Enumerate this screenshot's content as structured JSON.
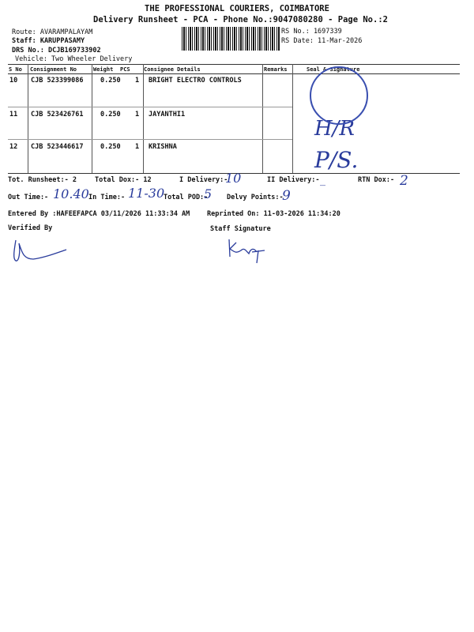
{
  "header": {
    "company": "THE PROFESSIONAL COURIERS, COIMBATORE",
    "subtitle": "Delivery Runsheet - PCA - Phone No.:9047080280 - Page No.:2",
    "route": "Route: AVARAMPALAYAM",
    "staff": "Staff: KARUPPASAMY",
    "drs": "DRS No.: DCJB169733902",
    "vehicle": "Vehicle: Two Wheeler Delivery",
    "rs_no": "RS No.: 1697339",
    "rs_date": "RS Date: 11-Mar-2026"
  },
  "table": {
    "columns": [
      "S No",
      "Consignment No",
      "Weight",
      "PCS",
      "Consignee Details",
      "Remarks",
      "Seal & Signature"
    ],
    "rows": [
      {
        "sno": "10",
        "consignment": "CJB 523399086",
        "weight": "0.250",
        "pcs": "1",
        "consignee": "BRIGHT ELECTRO CONTROLS",
        "remarks": "",
        "seal": ""
      },
      {
        "sno": "11",
        "consignment": "CJB 523426761",
        "weight": "0.250",
        "pcs": "1",
        "consignee": "JAYANTHI1",
        "remarks": "",
        "seal": "H/R"
      },
      {
        "sno": "12",
        "consignment": "CJB 523446617",
        "weight": "0.250",
        "pcs": "1",
        "consignee": "KRISHNA",
        "remarks": "",
        "seal": "P/S."
      }
    ]
  },
  "summary": {
    "tot_runsheet": "Tot. Runsheet:- 2",
    "total_dox": "Total Dox:-   12",
    "i_delivery": "I Delivery:-",
    "i_delivery_val": "10",
    "ii_delivery": "II Delivery:-",
    "ii_delivery_val": "_",
    "rtn_dox": "RTN Dox:-",
    "rtn_dox_val": "2",
    "out_time": "Out Time:-",
    "out_time_val": "10.40",
    "in_time": "In Time:-",
    "in_time_val": "11-30",
    "total_pod": "Total POD:-",
    "total_pod_val": "5",
    "delvy_points": "Delvy Points:-",
    "delvy_points_val": "9",
    "entered_by": "Entered By :HAFEEFAPCA 03/11/2026 11:33:34 AM",
    "reprinted": "Reprinted On: 11-03-2026 11:34:20",
    "verified_by": "Verified By",
    "staff_signature": "Staff Signature"
  },
  "colors": {
    "ink": "#2a3c9c"
  }
}
